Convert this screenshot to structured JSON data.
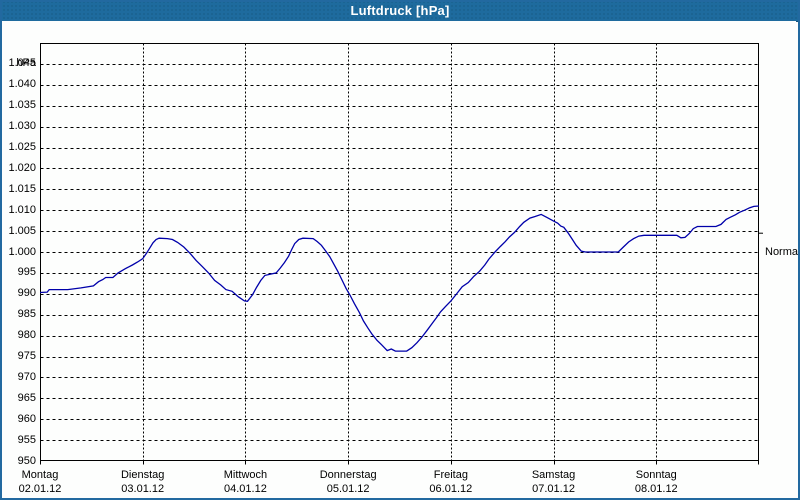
{
  "window": {
    "title": "Luftdruck [hPa]"
  },
  "colors": {
    "titlebar_bg": "#1e6b9e",
    "window_border": "#2269a0",
    "line_color": "#0000aa",
    "grid_color": "#000000",
    "plot_bg": "#fdfefd",
    "text_color": "#000000"
  },
  "chart_data": {
    "type": "line",
    "title": "Luftdruck [hPa]",
    "y_unit_label": "hPa",
    "ylim": [
      950,
      1050
    ],
    "ytick_step": 5,
    "grid": true,
    "legend_position": "none",
    "y_ticks": [
      {
        "value": 1045,
        "label": "1.045"
      },
      {
        "value": 1040,
        "label": "1.040"
      },
      {
        "value": 1035,
        "label": "1.035"
      },
      {
        "value": 1030,
        "label": "1.030"
      },
      {
        "value": 1025,
        "label": "1.025"
      },
      {
        "value": 1020,
        "label": "1.020"
      },
      {
        "value": 1015,
        "label": "1.015"
      },
      {
        "value": 1010,
        "label": "1.010"
      },
      {
        "value": 1005,
        "label": "1.005"
      },
      {
        "value": 1000,
        "label": "1.000"
      },
      {
        "value": 995,
        "label": "995"
      },
      {
        "value": 990,
        "label": "990"
      },
      {
        "value": 985,
        "label": "985"
      },
      {
        "value": 980,
        "label": "980"
      },
      {
        "value": 975,
        "label": "975"
      },
      {
        "value": 970,
        "label": "970"
      },
      {
        "value": 965,
        "label": "965"
      },
      {
        "value": 960,
        "label": "960"
      },
      {
        "value": 955,
        "label": "955"
      },
      {
        "value": 950,
        "label": "950"
      }
    ],
    "x_days": [
      {
        "name": "Montag",
        "date": "02.01.12"
      },
      {
        "name": "Dienstag",
        "date": "03.01.12"
      },
      {
        "name": "Mittwoch",
        "date": "04.01.12"
      },
      {
        "name": "Donnerstag",
        "date": "05.01.12"
      },
      {
        "name": "Freitag",
        "date": "06.01.12"
      },
      {
        "name": "Samstag",
        "date": "07.01.12"
      },
      {
        "name": "Sonntag",
        "date": "08.01.12"
      }
    ],
    "normal_marker": {
      "label": "Normal",
      "value": 1004.5
    },
    "series": [
      {
        "name": "Luftdruck",
        "color": "#0000aa",
        "points_t_days_hpa": [
          [
            0.0,
            990.3
          ],
          [
            0.07,
            990.4
          ],
          [
            0.09,
            991.0
          ],
          [
            0.27,
            991.0
          ],
          [
            0.4,
            991.4
          ],
          [
            0.52,
            991.9
          ],
          [
            0.57,
            992.9
          ],
          [
            0.61,
            993.4
          ],
          [
            0.64,
            993.9
          ],
          [
            0.71,
            993.9
          ],
          [
            0.76,
            995.0
          ],
          [
            0.83,
            996.0
          ],
          [
            0.9,
            996.9
          ],
          [
            0.95,
            997.6
          ],
          [
            1.0,
            998.4
          ],
          [
            1.04,
            999.8
          ],
          [
            1.07,
            1001.0
          ],
          [
            1.1,
            1002.2
          ],
          [
            1.13,
            1003.0
          ],
          [
            1.16,
            1003.3
          ],
          [
            1.24,
            1003.2
          ],
          [
            1.29,
            1003.0
          ],
          [
            1.34,
            1002.3
          ],
          [
            1.4,
            1001.2
          ],
          [
            1.46,
            999.7
          ],
          [
            1.52,
            998.0
          ],
          [
            1.58,
            996.5
          ],
          [
            1.64,
            995.0
          ],
          [
            1.7,
            993.2
          ],
          [
            1.76,
            992.1
          ],
          [
            1.81,
            991.0
          ],
          [
            1.87,
            990.6
          ],
          [
            1.93,
            989.3
          ],
          [
            1.99,
            988.3
          ],
          [
            2.02,
            988.2
          ],
          [
            2.07,
            989.8
          ],
          [
            2.11,
            991.6
          ],
          [
            2.15,
            993.2
          ],
          [
            2.19,
            994.4
          ],
          [
            2.24,
            994.7
          ],
          [
            2.3,
            995.0
          ],
          [
            2.34,
            996.2
          ],
          [
            2.38,
            997.5
          ],
          [
            2.42,
            999.0
          ],
          [
            2.45,
            1000.6
          ],
          [
            2.48,
            1002.0
          ],
          [
            2.52,
            1003.0
          ],
          [
            2.56,
            1003.3
          ],
          [
            2.66,
            1003.2
          ],
          [
            2.7,
            1002.5
          ],
          [
            2.74,
            1001.6
          ],
          [
            2.78,
            1000.3
          ],
          [
            2.82,
            998.9
          ],
          [
            2.86,
            997.1
          ],
          [
            2.9,
            995.3
          ],
          [
            2.94,
            993.3
          ],
          [
            2.98,
            991.3
          ],
          [
            3.02,
            989.6
          ],
          [
            3.06,
            987.7
          ],
          [
            3.11,
            985.5
          ],
          [
            3.15,
            983.5
          ],
          [
            3.19,
            981.9
          ],
          [
            3.23,
            980.4
          ],
          [
            3.28,
            978.9
          ],
          [
            3.33,
            977.7
          ],
          [
            3.38,
            976.4
          ],
          [
            3.42,
            976.8
          ],
          [
            3.46,
            976.3
          ],
          [
            3.57,
            976.3
          ],
          [
            3.62,
            977.1
          ],
          [
            3.67,
            978.3
          ],
          [
            3.72,
            979.7
          ],
          [
            3.77,
            981.3
          ],
          [
            3.82,
            983.0
          ],
          [
            3.86,
            984.3
          ],
          [
            3.9,
            985.7
          ],
          [
            3.95,
            987.0
          ],
          [
            4.0,
            988.3
          ],
          [
            4.06,
            990.1
          ],
          [
            4.11,
            991.7
          ],
          [
            4.17,
            992.7
          ],
          [
            4.22,
            994.1
          ],
          [
            4.28,
            995.4
          ],
          [
            4.33,
            996.9
          ],
          [
            4.37,
            998.3
          ],
          [
            4.43,
            1000.0
          ],
          [
            4.48,
            1001.3
          ],
          [
            4.53,
            1002.5
          ],
          [
            4.57,
            1003.6
          ],
          [
            4.62,
            1004.7
          ],
          [
            4.67,
            1006.1
          ],
          [
            4.71,
            1007.1
          ],
          [
            4.77,
            1008.1
          ],
          [
            4.82,
            1008.5
          ],
          [
            4.88,
            1009.0
          ],
          [
            4.94,
            1008.2
          ],
          [
            5.0,
            1007.4
          ],
          [
            5.04,
            1006.9
          ],
          [
            5.07,
            1006.2
          ],
          [
            5.1,
            1005.9
          ],
          [
            5.14,
            1004.6
          ],
          [
            5.18,
            1003.1
          ],
          [
            5.22,
            1001.6
          ],
          [
            5.27,
            1000.2
          ],
          [
            5.31,
            1000.0
          ],
          [
            5.63,
            1000.0
          ],
          [
            5.68,
            1001.2
          ],
          [
            5.73,
            1002.4
          ],
          [
            5.78,
            1003.2
          ],
          [
            5.83,
            1003.8
          ],
          [
            5.88,
            1004.0
          ],
          [
            6.2,
            1004.0
          ],
          [
            6.24,
            1003.4
          ],
          [
            6.28,
            1003.5
          ],
          [
            6.32,
            1004.4
          ],
          [
            6.36,
            1005.6
          ],
          [
            6.4,
            1006.1
          ],
          [
            6.58,
            1006.1
          ],
          [
            6.63,
            1006.6
          ],
          [
            6.68,
            1007.8
          ],
          [
            6.72,
            1008.3
          ],
          [
            6.77,
            1008.9
          ],
          [
            6.81,
            1009.5
          ],
          [
            6.86,
            1010.0
          ],
          [
            6.91,
            1010.6
          ],
          [
            6.95,
            1010.9
          ],
          [
            7.0,
            1011.0
          ]
        ]
      }
    ]
  }
}
